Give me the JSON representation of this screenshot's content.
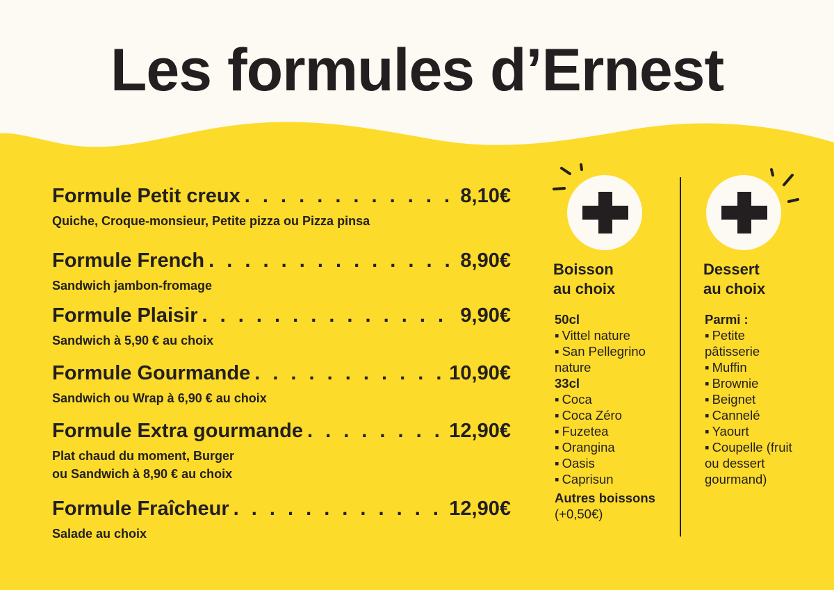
{
  "title": "Les formules d’Ernest",
  "colors": {
    "yellow": "#FCDB2B",
    "cream": "#FDF9F3",
    "ink": "#231F20"
  },
  "formules": [
    {
      "name": "Formule Petit creux",
      "price": "8,10€",
      "description": [
        "Quiche, Croque-monsieur, Petite pizza ou Pizza pinsa"
      ]
    },
    {
      "name": "Formule French",
      "price": "8,90€",
      "description": [
        "Sandwich jambon-fromage"
      ]
    },
    {
      "name": "Formule Plaisir",
      "price": "9,90€",
      "description": [
        "Sandwich à 5,90 € au choix"
      ]
    },
    {
      "name": "Formule Gourmande",
      "price": "10,90€",
      "description": [
        "Sandwich ou Wrap à 6,90 € au choix"
      ]
    },
    {
      "name": "Formule Extra gourmande",
      "price": "12,90€",
      "description": [
        "Plat chaud du moment, Burger",
        "ou Sandwich à 8,90 € au choix"
      ]
    },
    {
      "name": "Formule Fraîcheur",
      "price": "12,90€",
      "description": [
        "Salade au choix"
      ]
    }
  ],
  "boisson": {
    "icon": "plus-icon",
    "title": [
      "Boisson",
      "au choix"
    ],
    "lines": [
      {
        "text": "50cl",
        "type": "heading"
      },
      {
        "text": "Vittel nature",
        "type": "bullet"
      },
      {
        "text": "San Pellegrino nature",
        "type": "bullet"
      },
      {
        "text": "33cl",
        "type": "heading"
      },
      {
        "text": "Coca",
        "type": "bullet"
      },
      {
        "text": "Coca Zéro",
        "type": "bullet"
      },
      {
        "text": "Fuzetea",
        "type": "bullet"
      },
      {
        "text": "Orangina",
        "type": "bullet"
      },
      {
        "text": "Oasis",
        "type": "bullet"
      },
      {
        "text": "Caprisun",
        "type": "bullet"
      },
      {
        "text": "Autres boissons",
        "type": "heading"
      },
      {
        "text": "(+0,50€)",
        "type": "plain"
      }
    ]
  },
  "dessert": {
    "icon": "plus-icon",
    "title": [
      "Dessert",
      "au choix"
    ],
    "lines": [
      {
        "text": "Parmi :",
        "type": "heading"
      },
      {
        "text": "Petite pâtisserie",
        "type": "bullet"
      },
      {
        "text": "Muffin",
        "type": "bullet"
      },
      {
        "text": "Brownie",
        "type": "bullet"
      },
      {
        "text": "Beignet",
        "type": "bullet"
      },
      {
        "text": "Cannelé",
        "type": "bullet"
      },
      {
        "text": "Yaourt",
        "type": "bullet"
      },
      {
        "text": "Coupelle (fruit ou dessert gourmand)",
        "type": "bullet"
      }
    ]
  }
}
